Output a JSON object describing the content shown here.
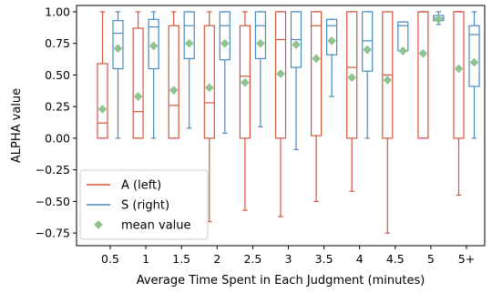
{
  "chart_data": {
    "type": "box",
    "xlabel": "Average Time Spent in Each Judgment (minutes)",
    "ylabel": "ALPHA value",
    "ylim": [
      -0.85,
      1.05
    ],
    "yticks": [
      1.0,
      0.75,
      0.5,
      0.25,
      0.0,
      -0.25,
      -0.5,
      -0.75
    ],
    "ytick_labels": [
      "1.00",
      "0.75",
      "0.50",
      "0.25",
      "0.00",
      "−0.25",
      "−0.50",
      "−0.75"
    ],
    "categories": [
      "0.5",
      "1",
      "1.5",
      "2",
      "2.5",
      "3",
      "3.5",
      "4",
      "4.5",
      "5",
      "5+"
    ],
    "grid": false,
    "legend_position": "bottom-left",
    "legend": [
      {
        "label": "A (left)",
        "kind": "line",
        "series": "A"
      },
      {
        "label": "S (right)",
        "kind": "line",
        "series": "S"
      },
      {
        "label": "mean value",
        "kind": "marker",
        "series": "mean"
      }
    ],
    "colors": {
      "A": "#d6553f",
      "S": "#4a8ac0",
      "mean": "#8fc48f"
    },
    "series": [
      {
        "key": "A",
        "boxes": [
          {
            "whislo": 0.0,
            "q1": 0.0,
            "med": 0.12,
            "q3": 0.59,
            "whishi": 1.0
          },
          {
            "whislo": 0.0,
            "q1": 0.0,
            "med": 0.21,
            "q3": 0.87,
            "whishi": 1.0
          },
          {
            "whislo": 0.0,
            "q1": 0.0,
            "med": 0.26,
            "q3": 0.89,
            "whishi": 1.0
          },
          {
            "whislo": -0.66,
            "q1": 0.0,
            "med": 0.28,
            "q3": 0.89,
            "whishi": 1.0
          },
          {
            "whislo": -0.57,
            "q1": 0.0,
            "med": 0.49,
            "q3": 0.89,
            "whishi": 1.0
          },
          {
            "whislo": -0.62,
            "q1": 0.0,
            "med": 0.78,
            "q3": 1.0,
            "whishi": 1.0
          },
          {
            "whislo": -0.5,
            "q1": 0.02,
            "med": 0.89,
            "q3": 1.0,
            "whishi": 1.0
          },
          {
            "whislo": -0.42,
            "q1": 0.0,
            "med": 0.56,
            "q3": 1.0,
            "whishi": 1.0
          },
          {
            "whislo": -0.75,
            "q1": 0.0,
            "med": 0.5,
            "q3": 1.0,
            "whishi": 1.0
          },
          {
            "whislo": 0.0,
            "q1": 0.0,
            "med": 1.0,
            "q3": 1.0,
            "whishi": 1.0
          },
          {
            "whislo": -0.45,
            "q1": 0.0,
            "med": 1.0,
            "q3": 1.0,
            "whishi": 1.0
          }
        ],
        "means": [
          0.23,
          0.33,
          0.38,
          0.4,
          0.44,
          0.51,
          0.63,
          0.48,
          0.46,
          0.67,
          0.55
        ]
      },
      {
        "key": "S",
        "boxes": [
          {
            "whislo": 0.0,
            "q1": 0.55,
            "med": 0.83,
            "q3": 0.93,
            "whishi": 1.0
          },
          {
            "whislo": 0.0,
            "q1": 0.55,
            "med": 0.88,
            "q3": 0.94,
            "whishi": 1.0
          },
          {
            "whislo": 0.08,
            "q1": 0.63,
            "med": 0.89,
            "q3": 1.0,
            "whishi": 1.0
          },
          {
            "whislo": 0.04,
            "q1": 0.62,
            "med": 0.89,
            "q3": 1.0,
            "whishi": 1.0
          },
          {
            "whislo": 0.09,
            "q1": 0.63,
            "med": 0.89,
            "q3": 1.0,
            "whishi": 1.0
          },
          {
            "whislo": -0.09,
            "q1": 0.56,
            "med": 0.78,
            "q3": 1.0,
            "whishi": 1.0
          },
          {
            "whislo": 0.33,
            "q1": 0.66,
            "med": 0.89,
            "q3": 0.94,
            "whishi": 0.94
          },
          {
            "whislo": 0.0,
            "q1": 0.53,
            "med": 0.77,
            "q3": 1.0,
            "whishi": 1.0
          },
          {
            "whislo": 0.69,
            "q1": 0.69,
            "med": 0.89,
            "q3": 0.92,
            "whishi": 0.92
          },
          {
            "whislo": 0.9,
            "q1": 0.93,
            "med": 0.95,
            "q3": 0.97,
            "whishi": 1.0
          },
          {
            "whislo": 0.0,
            "q1": 0.41,
            "med": 0.82,
            "q3": 0.89,
            "whishi": 1.0
          }
        ],
        "means": [
          0.71,
          0.73,
          0.75,
          0.75,
          0.75,
          0.74,
          0.77,
          0.7,
          0.69,
          0.94,
          0.6
        ]
      }
    ]
  }
}
